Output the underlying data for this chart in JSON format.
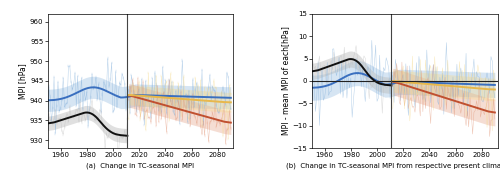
{
  "left_panel": {
    "title": "(a)  Change in TC-seasonal MPI",
    "ylabel": "MPI [hPa]",
    "ylim": [
      928,
      962
    ],
    "yticks": [
      930,
      935,
      940,
      945,
      950,
      955,
      960
    ],
    "xlim": [
      1950,
      2092
    ],
    "xticks": [
      1960,
      1980,
      2000,
      2020,
      2040,
      2060,
      2080
    ],
    "vline_x": 2011
  },
  "right_panel": {
    "title": "(b)  Change in TC-seasonal MPI from respective present climatology",
    "ylabel": "MPI - mean MPI of each[hPa]",
    "ylim": [
      -15,
      15
    ],
    "yticks": [
      -15,
      -10,
      -5,
      0,
      5,
      10,
      15
    ],
    "xlim": [
      1950,
      2092
    ],
    "xticks": [
      1960,
      1980,
      2000,
      2020,
      2040,
      2060,
      2080
    ],
    "vline_x": 2011,
    "hline_y": 0
  },
  "colors": {
    "blue": "#3A6FBF",
    "blue_light": "#7AAAD8",
    "yellow": "#E8B84B",
    "yellow_light": "#F5D98A",
    "orange": "#C05030",
    "orange_light": "#E09070",
    "black": "#111111",
    "gray_light": "#BBBBBB",
    "vline_color": "#444444",
    "hline_color": "#222222"
  },
  "year_start": 1950,
  "year_end": 2090,
  "split_year": 2011,
  "noise_scale_thin": 3.5,
  "noise_scale_black": 2.0,
  "std_blue": 2.8,
  "std_orange": 3.0,
  "std_yellow": 2.5,
  "std_black": 1.8
}
